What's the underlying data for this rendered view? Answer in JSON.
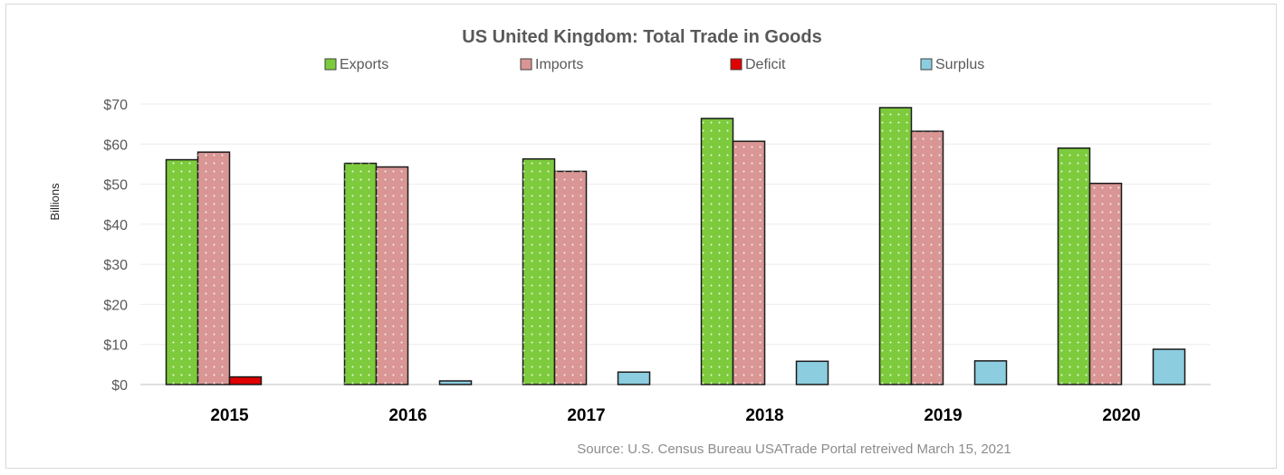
{
  "chart_data": {
    "type": "bar",
    "title": "US United Kingdom: Total Trade in Goods",
    "ylabel": "Billions",
    "xlabel": "",
    "categories": [
      "2015",
      "2016",
      "2017",
      "2018",
      "2019",
      "2020"
    ],
    "series": [
      {
        "name": "Exports",
        "color": "#7dcb3d",
        "values": [
          56.1,
          55.2,
          56.3,
          66.4,
          69.1,
          59.0
        ]
      },
      {
        "name": "Imports",
        "color": "#d99694",
        "values": [
          58.0,
          54.3,
          53.2,
          60.7,
          63.2,
          50.2
        ]
      },
      {
        "name": "Deficit",
        "color": "#e00000",
        "values": [
          1.9,
          0,
          0,
          0,
          0,
          0
        ]
      },
      {
        "name": "Surplus",
        "color": "#8ccde0",
        "values": [
          0,
          0.9,
          3.1,
          5.8,
          5.9,
          8.8
        ]
      }
    ],
    "ylim": [
      0,
      70
    ],
    "yticks": [
      0,
      10,
      20,
      30,
      40,
      50,
      60,
      70
    ],
    "ytick_labels": [
      "$0",
      "$10",
      "$20",
      "$30",
      "$40",
      "$50",
      "$60",
      "$70"
    ],
    "grid": true,
    "legend_position": "top",
    "source_note": "Source: U.S. Census Bureau USATrade Portal retreived March 15, 2021"
  }
}
